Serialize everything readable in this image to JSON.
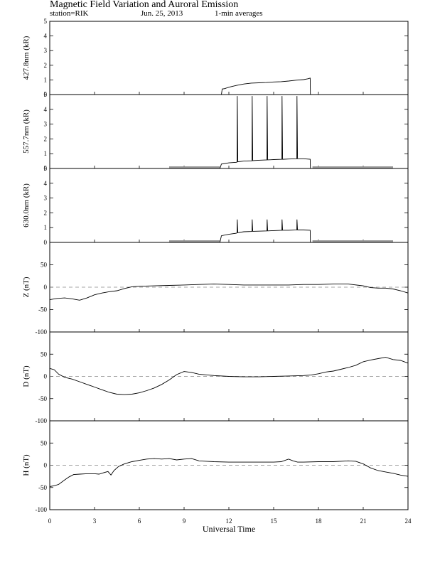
{
  "header": {
    "title": "Magnetic Field Variation and Auroral Emission",
    "station": "station=RIK",
    "date": "Jun. 25, 2013",
    "averaging": "1-min averages"
  },
  "colors": {
    "trace": "#000000",
    "no_data": "#999999",
    "zero_line": "#888888"
  },
  "chart_data": {
    "type": "line",
    "xlabel": "Universal Time",
    "x_ticks": [
      0,
      3,
      6,
      9,
      12,
      15,
      18,
      21,
      24
    ],
    "xlim": [
      0,
      24
    ],
    "panels": [
      {
        "id": "p4278",
        "ylabel": "427.8nm (kR)",
        "ylim": [
          0,
          5
        ],
        "yticks": [
          0,
          1,
          2,
          3,
          4,
          5
        ],
        "zero_line": false,
        "no_data_ranges": [],
        "series": [
          {
            "x": [
              11.5,
              11.55,
              11.7,
              12.0,
              12.5,
              13.0,
              13.5,
              14.0,
              14.5,
              15.0,
              15.5,
              16.0,
              16.5,
              17.0,
              17.3,
              17.45,
              17.46
            ],
            "y": [
              0,
              0.38,
              0.4,
              0.5,
              0.62,
              0.72,
              0.78,
              0.8,
              0.82,
              0.86,
              0.88,
              0.92,
              0.98,
              1.02,
              1.08,
              1.12,
              0
            ]
          }
        ]
      },
      {
        "id": "p5577",
        "ylabel": "557.7nm (kR)",
        "ylim": [
          0,
          5
        ],
        "yticks": [
          0,
          1,
          2,
          3,
          4,
          5
        ],
        "zero_line": false,
        "no_data_ranges": [
          [
            8,
            11.4
          ],
          [
            17.6,
            23
          ]
        ],
        "series": [
          {
            "x": [
              11.4,
              11.5,
              12.0,
              12.5,
              12.55,
              12.56,
              12.6,
              13.0,
              13.55,
              13.56,
              13.6,
              14.0,
              14.55,
              14.56,
              14.6,
              15.0,
              15.55,
              15.56,
              15.6,
              16.0,
              16.55,
              16.56,
              16.6,
              17.0,
              17.45,
              17.46
            ],
            "y": [
              0,
              0.3,
              0.38,
              0.42,
              0.44,
              4.9,
              0.45,
              0.5,
              0.52,
              4.9,
              0.53,
              0.56,
              0.58,
              4.9,
              0.58,
              0.6,
              0.62,
              4.9,
              0.62,
              0.64,
              0.66,
              4.9,
              0.66,
              0.66,
              0.62,
              0
            ]
          }
        ]
      },
      {
        "id": "p6300",
        "ylabel": "630.0nm (kR)",
        "ylim": [
          0,
          5
        ],
        "yticks": [
          0,
          1,
          2,
          3,
          4,
          5
        ],
        "zero_line": false,
        "no_data_ranges": [
          [
            8,
            11.4
          ],
          [
            17.6,
            23
          ]
        ],
        "series": [
          {
            "x": [
              11.4,
              11.5,
              12.0,
              12.5,
              12.55,
              12.56,
              12.6,
              13.0,
              13.55,
              13.56,
              13.6,
              14.0,
              14.55,
              14.56,
              14.6,
              15.0,
              15.55,
              15.56,
              15.6,
              16.0,
              16.55,
              16.56,
              16.6,
              17.0,
              17.45,
              17.46
            ],
            "y": [
              0,
              0.45,
              0.55,
              0.62,
              0.65,
              1.55,
              0.66,
              0.72,
              0.74,
              1.55,
              0.75,
              0.76,
              0.78,
              1.55,
              0.78,
              0.8,
              0.82,
              1.55,
              0.82,
              0.82,
              0.84,
              1.55,
              0.84,
              0.84,
              0.82,
              0
            ]
          }
        ]
      },
      {
        "id": "pZ",
        "ylabel": "Z (nT)",
        "ylim": [
          -100,
          100
        ],
        "yticks": [
          -100,
          -50,
          0,
          50
        ],
        "zero_line": true,
        "no_data_ranges": [],
        "series": [
          {
            "x": [
              0,
              0.5,
              1.0,
              1.5,
              2.0,
              2.5,
              3.0,
              3.5,
              4.0,
              4.5,
              5.0,
              5.5,
              6.0,
              7.0,
              8.0,
              9.0,
              10.0,
              11.0,
              12.0,
              13.0,
              14.0,
              15.0,
              16.0,
              17.0,
              18.0,
              19.0,
              20.0,
              21.0,
              21.5,
              22.0,
              22.5,
              23.0,
              23.5,
              24.0
            ],
            "y": [
              -28,
              -25,
              -24,
              -26,
              -29,
              -24,
              -17,
              -13,
              -10,
              -8,
              -3,
              1,
              2,
              3,
              4,
              5,
              6,
              7,
              6,
              5,
              5,
              5,
              5,
              6,
              6,
              7,
              7,
              3,
              -1,
              -2,
              -2,
              -4,
              -8,
              -13
            ]
          }
        ]
      },
      {
        "id": "pD",
        "ylabel": "D (nT)",
        "ylim": [
          -100,
          100
        ],
        "yticks": [
          -100,
          -50,
          0,
          50
        ],
        "zero_line": true,
        "no_data_ranges": [],
        "series": [
          {
            "x": [
              0,
              0.3,
              0.6,
              1.0,
              1.5,
              2.0,
              2.5,
              3.0,
              3.5,
              4.0,
              4.5,
              5.0,
              5.5,
              6.0,
              6.5,
              7.0,
              7.5,
              8.0,
              8.5,
              9.0,
              9.5,
              10.0,
              11.0,
              12.0,
              13.0,
              14.0,
              15.0,
              16.0,
              17.0,
              17.5,
              18.0,
              18.5,
              19.0,
              19.5,
              20.0,
              20.5,
              21.0,
              21.5,
              22.0,
              22.5,
              23.0,
              23.5,
              24.0
            ],
            "y": [
              18,
              15,
              5,
              -2,
              -6,
              -12,
              -18,
              -24,
              -30,
              -36,
              -40,
              -41,
              -40,
              -37,
              -32,
              -26,
              -18,
              -8,
              4,
              11,
              9,
              5,
              2,
              0,
              -1,
              -1,
              0,
              1,
              2,
              3,
              6,
              10,
              12,
              16,
              20,
              25,
              33,
              37,
              40,
              43,
              38,
              36,
              30
            ]
          }
        ]
      },
      {
        "id": "pH",
        "ylabel": "H (nT)",
        "ylim": [
          -100,
          100
        ],
        "yticks": [
          -100,
          -50,
          0,
          50
        ],
        "zero_line": true,
        "no_data_ranges": [],
        "series": [
          {
            "x": [
              0,
              0.3,
              0.6,
              1.0,
              1.3,
              1.6,
              2.0,
              2.5,
              3.0,
              3.3,
              3.6,
              3.9,
              4.1,
              4.3,
              4.6,
              5.0,
              5.5,
              6.0,
              6.5,
              7.0,
              7.5,
              8.0,
              8.5,
              9.0,
              9.5,
              10.0,
              10.5,
              11.0,
              12.0,
              13.0,
              14.0,
              15.0,
              15.5,
              16.0,
              16.3,
              16.6,
              17.0,
              18.0,
              19.0,
              20.0,
              20.5,
              21.0,
              21.5,
              22.0,
              22.5,
              23.0,
              23.5,
              24.0
            ],
            "y": [
              -48,
              -46,
              -43,
              -33,
              -26,
              -21,
              -20,
              -19,
              -19,
              -20,
              -17,
              -14,
              -22,
              -12,
              -3,
              3,
              8,
              11,
              14,
              15,
              14,
              15,
              12,
              14,
              15,
              10,
              9,
              8,
              7,
              7,
              7,
              7,
              8,
              14,
              10,
              7,
              7,
              8,
              8,
              10,
              9,
              3,
              -6,
              -12,
              -15,
              -18,
              -22,
              -25
            ]
          }
        ]
      }
    ]
  }
}
